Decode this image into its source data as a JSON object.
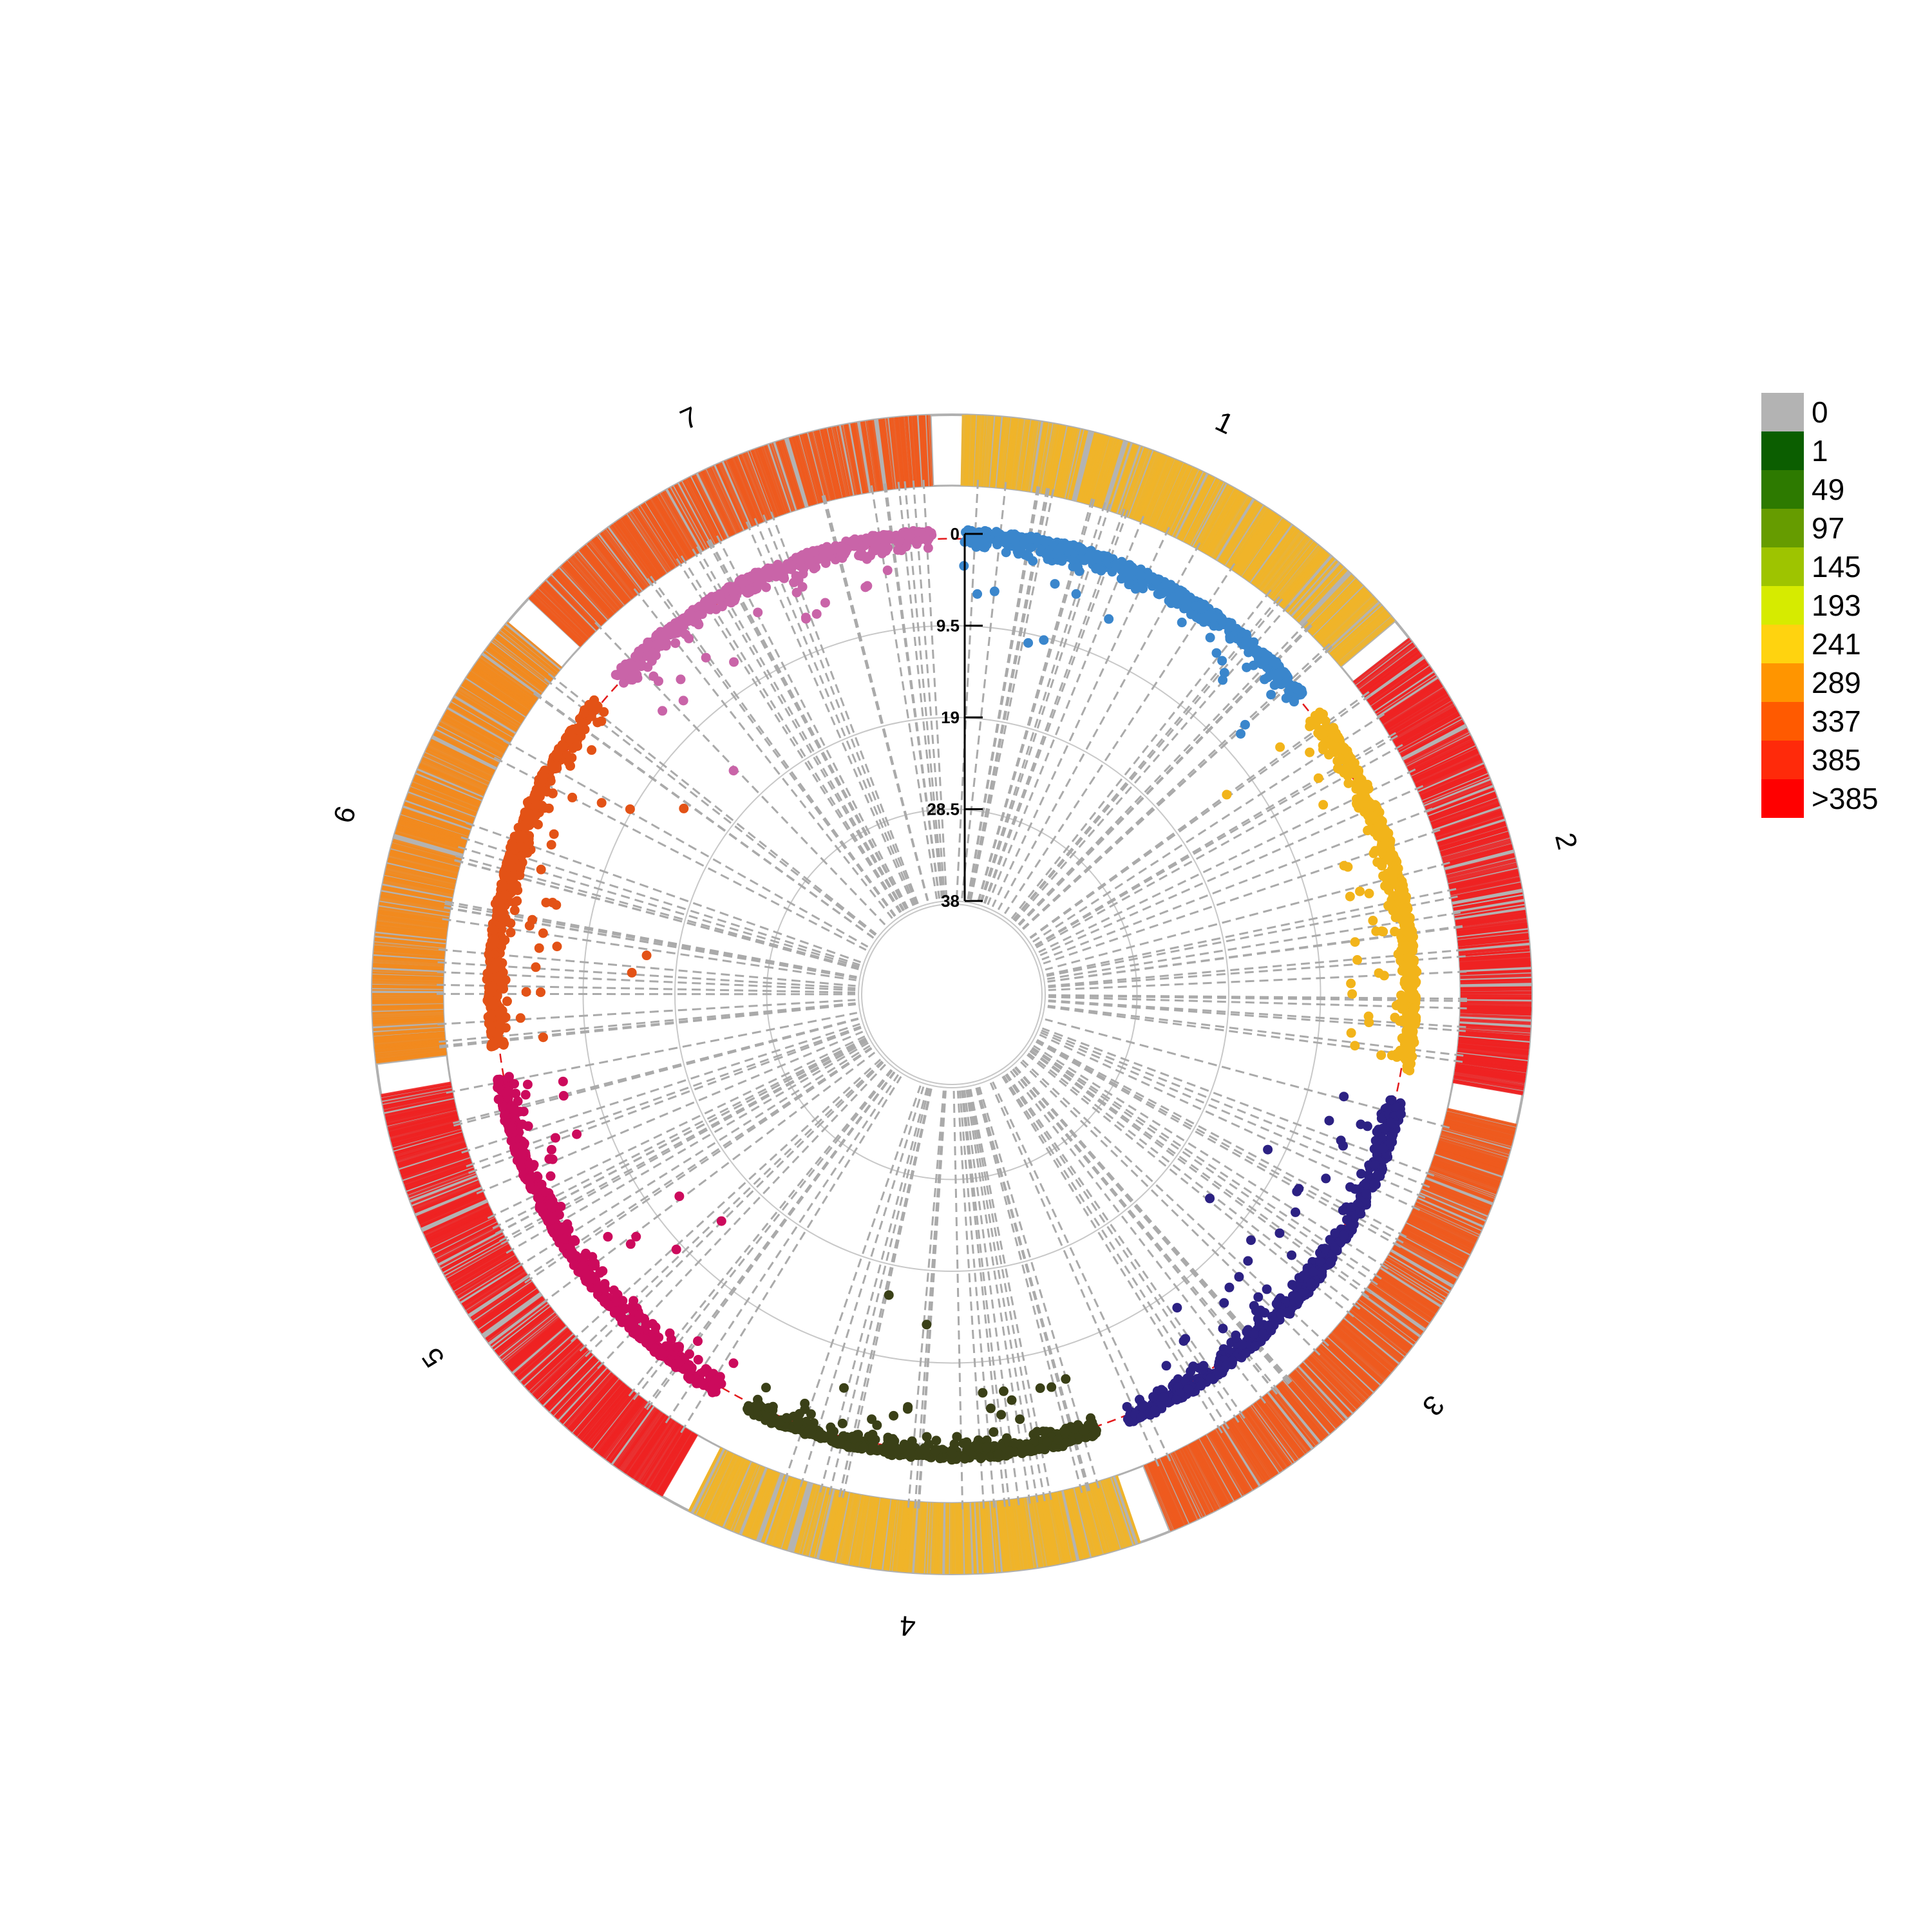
{
  "chart_data": {
    "type": "scatter",
    "subtype": "circular-manhattan",
    "title": "",
    "radial_axis": {
      "ticks": [
        "0",
        "9.5",
        "19",
        "28.5",
        "38"
      ],
      "values": [
        0,
        9.5,
        19,
        28.5,
        38
      ],
      "range": [
        0,
        38
      ],
      "direction": "inward"
    },
    "threshold_line": {
      "value": 0.5,
      "style": "dashed",
      "color": "#e31a1c"
    },
    "chromosomes": [
      {
        "label": "1",
        "color": "#3a86cc",
        "start_deg": 1,
        "end_deg": 50,
        "density_band": "#f0b429"
      },
      {
        "label": "2",
        "color": "#f2b41a",
        "start_deg": 52,
        "end_deg": 100,
        "density_band": "#ee2222"
      },
      {
        "label": "3",
        "color": "#2c2183",
        "start_deg": 103,
        "end_deg": 158,
        "density_band": "#ee5a1e"
      },
      {
        "label": "4",
        "color": "#3a4017",
        "start_deg": 161,
        "end_deg": 207,
        "density_band": "#f0b429"
      },
      {
        "label": "5",
        "color": "#cc0a5c",
        "start_deg": 210,
        "end_deg": 260,
        "density_band": "#ee2222"
      },
      {
        "label": "6",
        "color": "#e35216",
        "start_deg": 263,
        "end_deg": 310,
        "density_band": "#f28a1e"
      },
      {
        "label": "7",
        "color": "#c964a8",
        "start_deg": 313,
        "end_deg": 358,
        "density_band": "#ee5a1e"
      }
    ],
    "grid": true,
    "legend": {
      "position": "right",
      "items": [
        {
          "label": "0",
          "color": "#b3b3b3"
        },
        {
          "label": "1",
          "color": "#0b5e00"
        },
        {
          "label": "49",
          "color": "#2d7a00"
        },
        {
          "label": "97",
          "color": "#669c00"
        },
        {
          "label": "145",
          "color": "#9ec400"
        },
        {
          "label": "193",
          "color": "#d6eb00"
        },
        {
          "label": "241",
          "color": "#ffd30f"
        },
        {
          "label": "289",
          "color": "#ff9500"
        },
        {
          "label": "337",
          "color": "#ff5a00"
        },
        {
          "label": "385",
          "color": "#ff2a0a"
        },
        {
          "label": ">385",
          "color": "#ff0000"
        }
      ]
    }
  }
}
